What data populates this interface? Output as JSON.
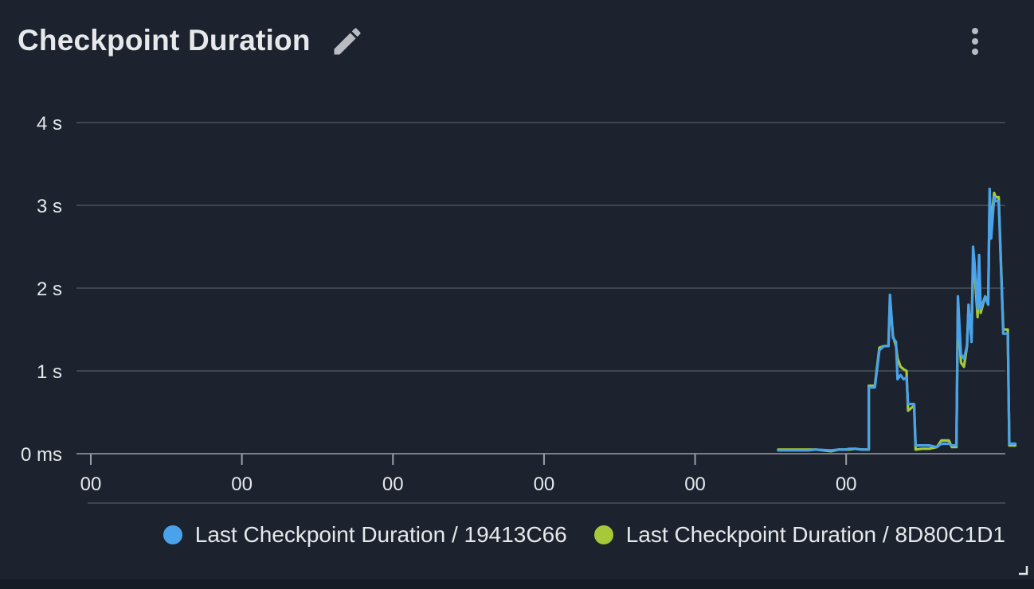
{
  "panel": {
    "title": "Checkpoint Duration"
  },
  "chart_data": {
    "type": "line",
    "title": "Checkpoint Duration",
    "xlabel": "",
    "ylabel": "",
    "y_unit": "s",
    "ylim": [
      0,
      4
    ],
    "yticks": [
      {
        "value": 0,
        "label": "0 ms"
      },
      {
        "value": 1,
        "label": "1 s"
      },
      {
        "value": 2,
        "label": "2 s"
      },
      {
        "value": 3,
        "label": "3 s"
      },
      {
        "value": 4,
        "label": "4 s"
      }
    ],
    "xlim": [
      0,
      60.8
    ],
    "xticks": [
      {
        "value": 0,
        "label": "00"
      },
      {
        "value": 10,
        "label": "00"
      },
      {
        "value": 20,
        "label": "00"
      },
      {
        "value": 30,
        "label": "00"
      },
      {
        "value": 40,
        "label": "00"
      },
      {
        "value": 50,
        "label": "00"
      }
    ],
    "grid": true,
    "legend_position": "bottom-right",
    "series": [
      {
        "name": "Last Checkpoint Duration / 19413C66",
        "color": "#4aa3ea",
        "points": [
          [
            45.5,
            0.04
          ],
          [
            46.5,
            0.04
          ],
          [
            47.5,
            0.04
          ],
          [
            48,
            0.05
          ],
          [
            49,
            0.04
          ],
          [
            49.5,
            0.05
          ],
          [
            50,
            0.05
          ],
          [
            50.2,
            0.06
          ],
          [
            50.6,
            0.06
          ],
          [
            51,
            0.05
          ],
          [
            51.5,
            0.05
          ],
          [
            51.5,
            0.8
          ],
          [
            51.9,
            0.8
          ],
          [
            52.2,
            1.25
          ],
          [
            52.5,
            1.3
          ],
          [
            52.8,
            1.3
          ],
          [
            52.9,
            1.92
          ],
          [
            53.1,
            1.4
          ],
          [
            53.3,
            1.35
          ],
          [
            53.4,
            0.9
          ],
          [
            53.6,
            0.95
          ],
          [
            53.8,
            0.9
          ],
          [
            54,
            0.92
          ],
          [
            54.1,
            0.6
          ],
          [
            54.5,
            0.6
          ],
          [
            54.6,
            0.1
          ],
          [
            55,
            0.1
          ],
          [
            55.5,
            0.1
          ],
          [
            56,
            0.08
          ],
          [
            56.3,
            0.12
          ],
          [
            56.8,
            0.12
          ],
          [
            57,
            0.1
          ],
          [
            57.3,
            0.1
          ],
          [
            57.4,
            1.9
          ],
          [
            57.6,
            1.2
          ],
          [
            57.8,
            1.15
          ],
          [
            58,
            1.3
          ],
          [
            58.1,
            1.8
          ],
          [
            58.3,
            1.35
          ],
          [
            58.4,
            2.5
          ],
          [
            58.5,
            2.3
          ],
          [
            58.7,
            1.75
          ],
          [
            58.8,
            2.4
          ],
          [
            58.9,
            1.75
          ],
          [
            59.2,
            1.9
          ],
          [
            59.4,
            1.8
          ],
          [
            59.5,
            3.2
          ],
          [
            59.6,
            2.6
          ],
          [
            59.8,
            3.1
          ],
          [
            59.9,
            3.05
          ],
          [
            60.1,
            3.05
          ],
          [
            60.4,
            1.45
          ],
          [
            60.7,
            1.45
          ],
          [
            60.8,
            0.12
          ],
          [
            61.2,
            0.12
          ]
        ]
      },
      {
        "name": "Last Checkpoint Duration / 8D80C1D1",
        "color": "#a6c93a",
        "points": [
          [
            45.5,
            0.05
          ],
          [
            46.5,
            0.05
          ],
          [
            47.5,
            0.05
          ],
          [
            48,
            0.05
          ],
          [
            49,
            0.03
          ],
          [
            49.5,
            0.05
          ],
          [
            50,
            0.05
          ],
          [
            50.2,
            0.05
          ],
          [
            50.6,
            0.06
          ],
          [
            51,
            0.05
          ],
          [
            51.5,
            0.05
          ],
          [
            51.5,
            0.82
          ],
          [
            51.9,
            0.82
          ],
          [
            52.2,
            1.28
          ],
          [
            52.5,
            1.3
          ],
          [
            52.8,
            1.3
          ],
          [
            52.9,
            1.85
          ],
          [
            53.1,
            1.42
          ],
          [
            53.3,
            1.3
          ],
          [
            53.4,
            1.15
          ],
          [
            53.6,
            1.05
          ],
          [
            53.8,
            1.02
          ],
          [
            54,
            1.0
          ],
          [
            54.1,
            0.52
          ],
          [
            54.5,
            0.58
          ],
          [
            54.6,
            0.05
          ],
          [
            55,
            0.06
          ],
          [
            55.5,
            0.06
          ],
          [
            56,
            0.08
          ],
          [
            56.3,
            0.16
          ],
          [
            56.8,
            0.16
          ],
          [
            57,
            0.08
          ],
          [
            57.3,
            0.08
          ],
          [
            57.4,
            1.75
          ],
          [
            57.6,
            1.1
          ],
          [
            57.8,
            1.05
          ],
          [
            58,
            1.3
          ],
          [
            58.1,
            1.75
          ],
          [
            58.3,
            1.45
          ],
          [
            58.4,
            2.3
          ],
          [
            58.5,
            2.2
          ],
          [
            58.7,
            1.65
          ],
          [
            58.8,
            2.3
          ],
          [
            58.9,
            1.7
          ],
          [
            59.2,
            1.9
          ],
          [
            59.4,
            1.85
          ],
          [
            59.5,
            3.1
          ],
          [
            59.6,
            2.8
          ],
          [
            59.8,
            3.15
          ],
          [
            59.9,
            3.1
          ],
          [
            60.1,
            3.1
          ],
          [
            60.4,
            1.5
          ],
          [
            60.7,
            1.5
          ],
          [
            60.8,
            0.1
          ],
          [
            61.2,
            0.1
          ]
        ]
      }
    ]
  },
  "icons": {
    "edit": "pencil-icon",
    "menu": "more-vertical-icon",
    "resize": "resize-corner-icon"
  },
  "colors": {
    "background": "#1c232e",
    "grid": "#4a525d",
    "axis_text": "#e6e8ec"
  }
}
